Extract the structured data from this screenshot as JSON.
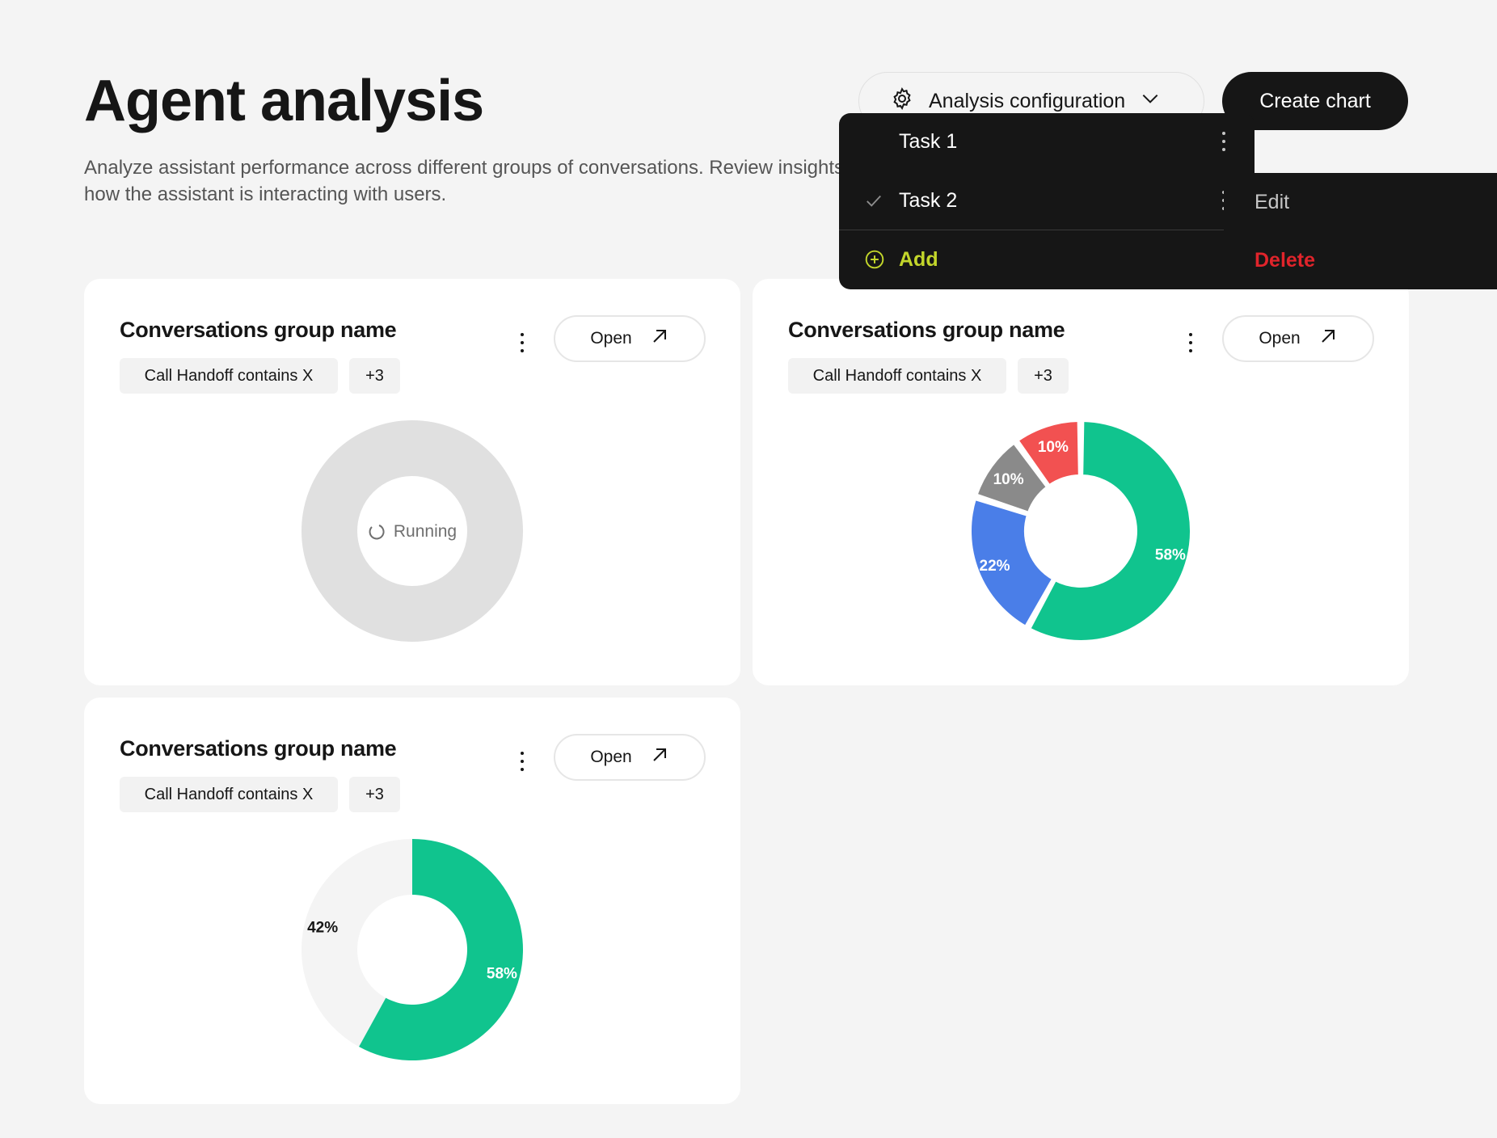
{
  "page": {
    "title": "Agent analysis",
    "description": "Analyze assistant performance across different groups of conversations. Review insights to understand how the assistant is interacting with users."
  },
  "header": {
    "config_label": "Analysis configuration",
    "create_label": "Create chart"
  },
  "config_menu": {
    "items": [
      {
        "label": "Task 1",
        "selected": false
      },
      {
        "label": "Task 2",
        "selected": true
      }
    ],
    "add_label": "Add",
    "submenu": {
      "edit_label": "Edit",
      "delete_label": "Delete"
    }
  },
  "colors": {
    "accent_green": "#10c48e",
    "blue": "#4a7ee8",
    "gray": "#8a8a8a",
    "red": "#f25151",
    "loading_gray": "#e0e0e0",
    "remainder_gray": "#f4f4f4",
    "add_lime": "#c3d62b",
    "delete_red": "#e0242b"
  },
  "cards": [
    {
      "title": "Conversations group name",
      "open_label": "Open",
      "filter_chip": "Call Handoff contains X",
      "more_chip": "+3",
      "status": "Running"
    },
    {
      "title": "Conversations group name",
      "open_label": "Open",
      "filter_chip": "Call Handoff contains X",
      "more_chip": "+3"
    },
    {
      "title": "Conversations group name",
      "open_label": "Open",
      "filter_chip": "Call Handoff contains X",
      "more_chip": "+3"
    }
  ],
  "chart_data": [
    {
      "type": "pie",
      "variant": "donut",
      "state": "loading",
      "status_text": "Running",
      "slices": []
    },
    {
      "type": "pie",
      "variant": "donut",
      "slices": [
        {
          "label": "58%",
          "value": 58,
          "color": "#10c48e"
        },
        {
          "label": "22%",
          "value": 22,
          "color": "#4a7ee8"
        },
        {
          "label": "10%",
          "value": 10,
          "color": "#8a8a8a"
        },
        {
          "label": "10%",
          "value": 10,
          "color": "#f25151"
        }
      ]
    },
    {
      "type": "pie",
      "variant": "donut",
      "slices": [
        {
          "label": "58%",
          "value": 58,
          "color": "#10c48e"
        },
        {
          "label": "42%",
          "value": 42,
          "color": "#f4f4f4"
        }
      ]
    }
  ]
}
